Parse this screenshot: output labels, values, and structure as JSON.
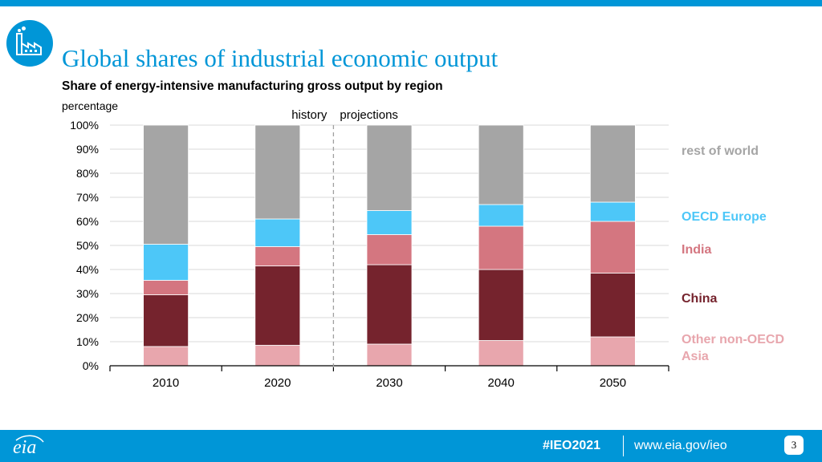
{
  "header": {
    "title": "Global shares of industrial economic output",
    "subtitle": "Share of energy-intensive manufacturing gross output by region",
    "unit_label": "percentage"
  },
  "footer": {
    "hashtag": "#IEO2021",
    "url": "www.eia.gov/ieo",
    "page_number": "3",
    "logo_text": "eia"
  },
  "colors": {
    "brand": "#0096d7",
    "other_non_oecd_asia": "#e8a6ad",
    "china": "#75232d",
    "india": "#d47680",
    "oecd_europe": "#4dc7f8",
    "rest_of_world": "#a5a5a5"
  },
  "chart_data": {
    "type": "bar",
    "stacked": true,
    "categories": [
      "2010",
      "2020",
      "2030",
      "2040",
      "2050"
    ],
    "series": [
      {
        "name": "Other non-OECD Asia",
        "color": "#e8a6ad",
        "label_color": "#e8a6ad",
        "values": [
          8,
          8.5,
          9,
          10.5,
          12
        ]
      },
      {
        "name": "China",
        "color": "#75232d",
        "label_color": "#75232d",
        "values": [
          21.5,
          33,
          33,
          29.5,
          26.5
        ]
      },
      {
        "name": "India",
        "color": "#d47680",
        "label_color": "#d47680",
        "values": [
          6,
          8,
          12.5,
          18,
          21.5
        ]
      },
      {
        "name": "OECD Europe",
        "color": "#4dc7f8",
        "label_color": "#4dc7f8",
        "values": [
          15,
          11.5,
          10,
          9,
          8
        ]
      },
      {
        "name": "rest of world",
        "color": "#a5a5a5",
        "label_color": "#a5a5a5",
        "values": [
          49.5,
          39,
          35.5,
          33,
          32
        ]
      }
    ],
    "yticks": [
      "0%",
      "10%",
      "20%",
      "30%",
      "40%",
      "50%",
      "60%",
      "70%",
      "80%",
      "90%",
      "100%"
    ],
    "ylim": [
      0,
      100
    ],
    "xlabel": "",
    "ylabel": "percentage",
    "grid": true,
    "legend_position": "right",
    "annotations": {
      "history_label": "history",
      "projections_label": "projections"
    }
  }
}
